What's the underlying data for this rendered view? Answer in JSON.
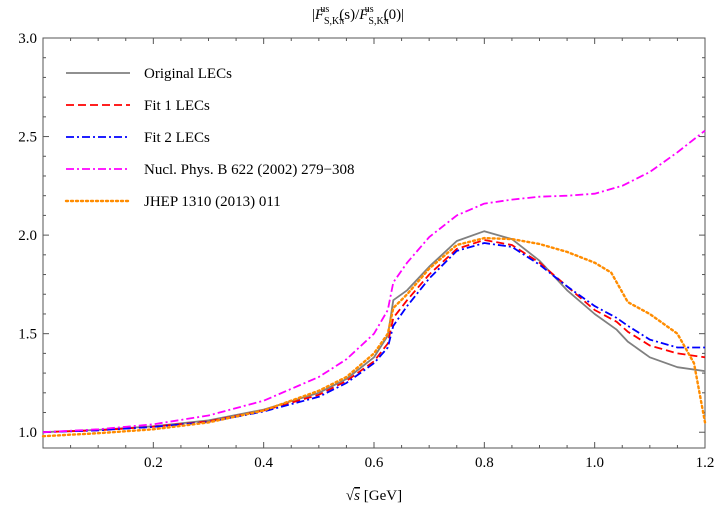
{
  "chart_data": {
    "type": "line",
    "title": "|F^us_S,Kπ(s)/F^us_S,Kπ(0)|",
    "title_parts": {
      "open": "|",
      "f1": "F",
      "sub1": "S,Kπ",
      "sup1": "us",
      "arg1": "(s)/",
      "f2": "F",
      "sub2": "S,Kπ",
      "sup2": "us",
      "arg2": "(0)",
      "close": "|"
    },
    "xlabel": "√s [GeV]",
    "xlabel_parts": {
      "sqrt": "√",
      "var": "s",
      "unit": " [GeV]"
    },
    "ylabel": "",
    "xlim": [
      0.0,
      1.2
    ],
    "ylim": [
      0.92,
      3.0
    ],
    "xticks": [
      "0.2",
      "0.4",
      "0.6",
      "0.8",
      "1.0",
      "1.2"
    ],
    "xtick_values": [
      0.2,
      0.4,
      0.6,
      0.8,
      1.0,
      1.2
    ],
    "yticks": [
      "1.0",
      "1.5",
      "2.0",
      "2.5",
      "3.0"
    ],
    "ytick_values": [
      1.0,
      1.5,
      2.0,
      2.5,
      3.0
    ],
    "grid": false,
    "legend_position": "top-left",
    "series": [
      {
        "name": "Original LECs",
        "color": "#808080",
        "dash": "solid",
        "points": [
          [
            0.0,
            1.0
          ],
          [
            0.1,
            1.012
          ],
          [
            0.2,
            1.03
          ],
          [
            0.3,
            1.06
          ],
          [
            0.4,
            1.115
          ],
          [
            0.5,
            1.2
          ],
          [
            0.55,
            1.27
          ],
          [
            0.6,
            1.38
          ],
          [
            0.625,
            1.49
          ],
          [
            0.635,
            1.67
          ],
          [
            0.66,
            1.72
          ],
          [
            0.7,
            1.84
          ],
          [
            0.75,
            1.97
          ],
          [
            0.8,
            2.02
          ],
          [
            0.85,
            1.98
          ],
          [
            0.9,
            1.87
          ],
          [
            0.95,
            1.72
          ],
          [
            1.0,
            1.6
          ],
          [
            1.04,
            1.52
          ],
          [
            1.06,
            1.46
          ],
          [
            1.1,
            1.38
          ],
          [
            1.15,
            1.33
          ],
          [
            1.2,
            1.31
          ]
        ]
      },
      {
        "name": "Fit 1 LECs",
        "color": "#ff0000",
        "dash": "dashed",
        "points": [
          [
            0.0,
            1.0
          ],
          [
            0.1,
            1.01
          ],
          [
            0.2,
            1.028
          ],
          [
            0.3,
            1.055
          ],
          [
            0.4,
            1.11
          ],
          [
            0.5,
            1.19
          ],
          [
            0.55,
            1.26
          ],
          [
            0.6,
            1.36
          ],
          [
            0.625,
            1.45
          ],
          [
            0.635,
            1.58
          ],
          [
            0.66,
            1.67
          ],
          [
            0.7,
            1.8
          ],
          [
            0.75,
            1.93
          ],
          [
            0.8,
            1.975
          ],
          [
            0.85,
            1.95
          ],
          [
            0.9,
            1.86
          ],
          [
            0.95,
            1.74
          ],
          [
            1.0,
            1.62
          ],
          [
            1.04,
            1.56
          ],
          [
            1.06,
            1.51
          ],
          [
            1.1,
            1.44
          ],
          [
            1.15,
            1.4
          ],
          [
            1.2,
            1.38
          ]
        ]
      },
      {
        "name": "Fit 2 LECs",
        "color": "#0000ff",
        "dash": "dashdot",
        "points": [
          [
            0.0,
            1.0
          ],
          [
            0.1,
            1.01
          ],
          [
            0.2,
            1.027
          ],
          [
            0.3,
            1.052
          ],
          [
            0.4,
            1.105
          ],
          [
            0.5,
            1.18
          ],
          [
            0.55,
            1.25
          ],
          [
            0.6,
            1.35
          ],
          [
            0.625,
            1.43
          ],
          [
            0.635,
            1.54
          ],
          [
            0.66,
            1.64
          ],
          [
            0.7,
            1.78
          ],
          [
            0.75,
            1.92
          ],
          [
            0.8,
            1.96
          ],
          [
            0.85,
            1.94
          ],
          [
            0.9,
            1.85
          ],
          [
            0.95,
            1.74
          ],
          [
            1.0,
            1.64
          ],
          [
            1.04,
            1.58
          ],
          [
            1.06,
            1.54
          ],
          [
            1.1,
            1.47
          ],
          [
            1.15,
            1.43
          ],
          [
            1.2,
            1.43
          ]
        ]
      },
      {
        "name": "Nucl. Phys. B 622 (2002) 279−308",
        "color": "#ff00ff",
        "dash": "dashdot",
        "points": [
          [
            0.0,
            1.0
          ],
          [
            0.1,
            1.015
          ],
          [
            0.2,
            1.04
          ],
          [
            0.3,
            1.085
          ],
          [
            0.4,
            1.16
          ],
          [
            0.5,
            1.28
          ],
          [
            0.55,
            1.37
          ],
          [
            0.6,
            1.5
          ],
          [
            0.625,
            1.62
          ],
          [
            0.635,
            1.76
          ],
          [
            0.66,
            1.86
          ],
          [
            0.7,
            1.99
          ],
          [
            0.75,
            2.1
          ],
          [
            0.8,
            2.16
          ],
          [
            0.85,
            2.18
          ],
          [
            0.9,
            2.195
          ],
          [
            0.95,
            2.2
          ],
          [
            1.0,
            2.21
          ],
          [
            1.05,
            2.25
          ],
          [
            1.1,
            2.32
          ],
          [
            1.15,
            2.42
          ],
          [
            1.2,
            2.53
          ]
        ]
      },
      {
        "name": "JHEP 1310 (2013) 011",
        "color": "#ff8c00",
        "dash": "dotted",
        "points": [
          [
            0.0,
            0.98
          ],
          [
            0.1,
            0.995
          ],
          [
            0.2,
            1.015
          ],
          [
            0.3,
            1.05
          ],
          [
            0.4,
            1.11
          ],
          [
            0.5,
            1.21
          ],
          [
            0.55,
            1.28
          ],
          [
            0.6,
            1.4
          ],
          [
            0.625,
            1.5
          ],
          [
            0.635,
            1.63
          ],
          [
            0.66,
            1.7
          ],
          [
            0.7,
            1.83
          ],
          [
            0.75,
            1.95
          ],
          [
            0.8,
            1.985
          ],
          [
            0.85,
            1.98
          ],
          [
            0.9,
            1.955
          ],
          [
            0.95,
            1.915
          ],
          [
            1.0,
            1.86
          ],
          [
            1.03,
            1.81
          ],
          [
            1.06,
            1.66
          ],
          [
            1.1,
            1.6
          ],
          [
            1.15,
            1.5
          ],
          [
            1.18,
            1.35
          ],
          [
            1.2,
            1.05
          ]
        ]
      }
    ]
  }
}
